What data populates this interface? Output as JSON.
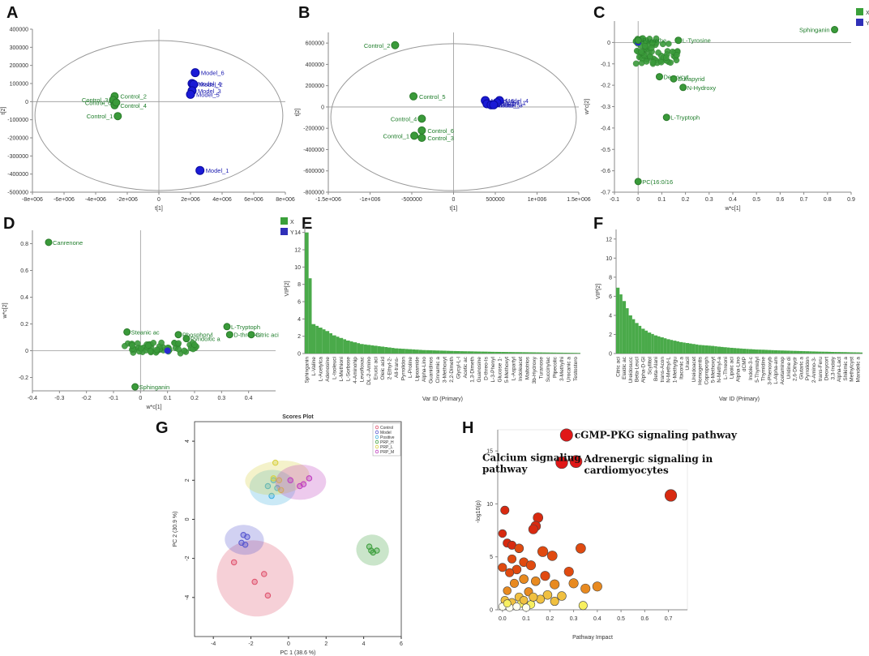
{
  "panel_labels": [
    "A",
    "B",
    "C",
    "D",
    "E",
    "F",
    "G",
    "H"
  ],
  "chart_data": [
    {
      "id": "A",
      "type": "scatter",
      "xlabel": "t[1]",
      "ylabel": "t[2]",
      "xlim": [
        -8000000,
        8000000
      ],
      "ylim": [
        -500000,
        400000
      ],
      "xticks": [
        "-8e+006",
        "-6e+006",
        "-4e+006",
        "-2e+006",
        "0",
        "2e+006",
        "4e+006",
        "6e+006",
        "8e+006"
      ],
      "xtick_vals": [
        -8000000,
        -6000000,
        -4000000,
        -2000000,
        0,
        2000000,
        4000000,
        6000000,
        8000000
      ],
      "yticks": [
        "-500000",
        "-400000",
        "-300000",
        "-200000",
        "-100000",
        "0",
        "100000",
        "200000",
        "300000",
        "400000"
      ],
      "ytick_vals": [
        -500000,
        -400000,
        -300000,
        -200000,
        -100000,
        0,
        100000,
        200000,
        300000,
        400000
      ],
      "points": [
        {
          "label": "Control_1",
          "x": -2600000,
          "y": -80000,
          "group": "control"
        },
        {
          "label": "Control_2",
          "x": -2800000,
          "y": 30000,
          "group": "control"
        },
        {
          "label": "Control_3",
          "x": -2900000,
          "y": 10000,
          "group": "control"
        },
        {
          "label": "Control_4",
          "x": -2800000,
          "y": -20000,
          "group": "control"
        },
        {
          "label": "Control_6",
          "x": -2700000,
          "y": -5000,
          "group": "control"
        },
        {
          "label": "Model_6",
          "x": 2300000,
          "y": 160000,
          "group": "model"
        },
        {
          "label": "Model_4",
          "x": 2100000,
          "y": 100000,
          "group": "model"
        },
        {
          "label": "Model_2",
          "x": 2200000,
          "y": 95000,
          "group": "model"
        },
        {
          "label": "Model_3",
          "x": 2100000,
          "y": 60000,
          "group": "model"
        },
        {
          "label": "Model_5",
          "x": 2000000,
          "y": 40000,
          "group": "model"
        },
        {
          "label": "Model_1",
          "x": 2600000,
          "y": -380000,
          "group": "model"
        }
      ]
    },
    {
      "id": "B",
      "type": "scatter",
      "xlabel": "t[1]",
      "ylabel": "t[2]",
      "xlim": [
        -1500000,
        1500000
      ],
      "ylim": [
        -800000,
        700000
      ],
      "xticks": [
        "-1.5e+006",
        "-1e+006",
        "-500000",
        "0",
        "500000",
        "1e+006",
        "1.5e+006"
      ],
      "xtick_vals": [
        -1500000,
        -1000000,
        -500000,
        0,
        500000,
        1000000,
        1500000
      ],
      "yticks": [
        "-800000",
        "-600000",
        "-400000",
        "-200000",
        "0",
        "200000",
        "400000",
        "600000"
      ],
      "ytick_vals": [
        -800000,
        -600000,
        -400000,
        -200000,
        0,
        200000,
        400000,
        600000
      ],
      "points": [
        {
          "label": "Control_2",
          "x": -700000,
          "y": 580000,
          "group": "control"
        },
        {
          "label": "Control_5",
          "x": -480000,
          "y": 100000,
          "group": "control"
        },
        {
          "label": "Control_4",
          "x": -380000,
          "y": -110000,
          "group": "control"
        },
        {
          "label": "Control_6",
          "x": -380000,
          "y": -220000,
          "group": "control"
        },
        {
          "label": "Control_1",
          "x": -470000,
          "y": -270000,
          "group": "control"
        },
        {
          "label": "Control_3",
          "x": -380000,
          "y": -290000,
          "group": "control"
        },
        {
          "label": "Model_6",
          "x": 380000,
          "y": 60000,
          "group": "model"
        },
        {
          "label": "Model_4",
          "x": 550000,
          "y": 60000,
          "group": "model"
        },
        {
          "label": "Model_1",
          "x": 520000,
          "y": 40000,
          "group": "model"
        },
        {
          "label": "Model_2",
          "x": 400000,
          "y": 30000,
          "group": "model"
        },
        {
          "label": "Model_5",
          "x": 450000,
          "y": 20000,
          "group": "model"
        },
        {
          "label": "Model_3",
          "x": 480000,
          "y": 20000,
          "group": "model"
        }
      ]
    },
    {
      "id": "C",
      "type": "scatter",
      "xlabel": "w*c[1]",
      "ylabel": "w*c[2]",
      "xlim": [
        -0.1,
        0.9
      ],
      "ylim": [
        -0.7,
        0.1
      ],
      "xticks": [
        "-0.1",
        "0",
        "0.1",
        "0.2",
        "0.3",
        "0.4",
        "0.5",
        "0.6",
        "0.7",
        "0.8",
        "0.9"
      ],
      "xtick_vals": [
        -0.1,
        0,
        0.1,
        0.2,
        0.3,
        0.4,
        0.5,
        0.6,
        0.7,
        0.8,
        0.9
      ],
      "yticks": [
        "-0.7",
        "-0.6",
        "-0.5",
        "-0.4",
        "-0.3",
        "-0.2",
        "-0.1",
        "0"
      ],
      "ytick_vals": [
        -0.7,
        -0.6,
        -0.5,
        -0.4,
        -0.3,
        -0.2,
        -0.1,
        0
      ],
      "legend": [
        "X",
        "Y"
      ],
      "labeled_points": [
        {
          "label": "Sphinganin",
          "x": 0.83,
          "y": 0.06
        },
        {
          "label": "Pantothe",
          "x": 0.0,
          "y": 0.01
        },
        {
          "label": "L-Tyrosine",
          "x": 0.17,
          "y": 0.01
        },
        {
          "label": "Deoxycyt",
          "x": 0.09,
          "y": -0.16
        },
        {
          "label": "Sulfapyrid",
          "x": 0.15,
          "y": -0.17
        },
        {
          "label": "N-Hydroxy",
          "x": 0.19,
          "y": -0.21
        },
        {
          "label": "L-Tryptoph",
          "x": 0.12,
          "y": -0.35
        },
        {
          "label": "PC(16:0/16",
          "x": 0.0,
          "y": -0.65
        }
      ]
    },
    {
      "id": "D",
      "type": "scatter",
      "xlabel": "w*c[1]",
      "ylabel": "w*c[2]",
      "xlim": [
        -0.4,
        0.5
      ],
      "ylim": [
        -0.3,
        0.9
      ],
      "xticks": [
        "-0.4",
        "-0.3",
        "-0.2",
        "-0.1",
        "0",
        "0.1",
        "0.2",
        "0.3",
        "0.4"
      ],
      "xtick_vals": [
        -0.4,
        -0.3,
        -0.2,
        -0.1,
        0,
        0.1,
        0.2,
        0.3,
        0.4
      ],
      "yticks": [
        "-0.2",
        "0",
        "0.2",
        "0.4",
        "0.6",
        "0.8"
      ],
      "ytick_vals": [
        -0.2,
        0,
        0.2,
        0.4,
        0.6,
        0.8
      ],
      "legend": [
        "X",
        "Y"
      ],
      "labeled_points": [
        {
          "label": "Canrenone",
          "x": -0.34,
          "y": 0.81
        },
        {
          "label": "Steanic ac",
          "x": -0.05,
          "y": 0.14
        },
        {
          "label": "L-Tryptoph",
          "x": 0.32,
          "y": 0.18
        },
        {
          "label": "D-threo-Is",
          "x": 0.33,
          "y": 0.12
        },
        {
          "label": "Citric aci",
          "x": 0.41,
          "y": 0.12
        },
        {
          "label": "Phosphoryl",
          "x": 0.14,
          "y": 0.12
        },
        {
          "label": "Pyridoxic a",
          "x": 0.17,
          "y": 0.09
        },
        {
          "label": "Sphinganin",
          "x": -0.02,
          "y": -0.27
        }
      ]
    },
    {
      "id": "E",
      "type": "bar",
      "xlabel": "Var ID (Primary)",
      "ylabel": "VIP[2]",
      "ylim": [
        0,
        15
      ],
      "yticks": [
        "0",
        "2",
        "4",
        "6",
        "8",
        "10",
        "12",
        "14"
      ],
      "ytick_vals": [
        0,
        2,
        4,
        6,
        8,
        10,
        12,
        14
      ],
      "categories": [
        "Sphinganin",
        "L-Valine",
        "L-Acetylca",
        "Adenosine",
        "L-Isoleuci",
        "L-Methioni",
        "L-Sorbose",
        "4-Aminohip",
        "Levofloxac",
        "DL-2-Amino",
        "Erucic aci",
        "Oleic acid",
        "2-Ethyl-2-",
        "All-trans-",
        "Pyrrolidon",
        "L-Proline",
        "Lipoamide",
        "Alpha-Lino",
        "Guanidinos",
        "Cinnamic a",
        "3-Methoxyt",
        "2,2-Dimeth",
        "Glycyl-L-l",
        "Acetic ac",
        "1,3-Dimeth",
        "Guanosine",
        "D-threo-Is",
        "L-3-Phenyl",
        "Glucose 1-",
        "5-Methoxyt",
        "L-Aspartyl",
        "Indoleacet",
        "Maltotrios",
        "3b-Hydroxy",
        "Turanose",
        "Succinylac",
        "Pipecolic",
        "3-Methylhi",
        "Urocanic a",
        "Testostero"
      ],
      "values": [
        14.0,
        3.4,
        3.0,
        2.6,
        2.1,
        1.8,
        1.5,
        1.3,
        1.1,
        1.0,
        0.9,
        0.8,
        0.7,
        0.6,
        0.55,
        0.5,
        0.45,
        0.4,
        0.38,
        0.35,
        0.33,
        0.3,
        0.28,
        0.26,
        0.25,
        0.23,
        0.22,
        0.2,
        0.19,
        0.18,
        0.17,
        0.16,
        0.15,
        0.14,
        0.13,
        0.12,
        0.11,
        0.1,
        0.09,
        0.08
      ]
    },
    {
      "id": "F",
      "type": "bar",
      "xlabel": "Var ID (Primary)",
      "ylabel": "VIP[2]",
      "ylim": [
        0,
        13
      ],
      "yticks": [
        "0",
        "2",
        "4",
        "6",
        "8",
        "10",
        "12"
      ],
      "ytick_vals": [
        0,
        2,
        4,
        6,
        8,
        10,
        12
      ],
      "categories": [
        "Citric aci",
        "Elaidic ac",
        "Ureidosucc",
        "Beta-Leucl",
        "Alpha-D-Gl",
        "Scyllitol",
        "Beta-Alani",
        "trans-Acon",
        "N-Methyl-L",
        "1-Methylgu",
        "Itaconic a",
        "Uracil",
        "Ureidoacet",
        "Homogentis",
        "Coproporph",
        "5-Methoxyt",
        "N-Methyl-a",
        "L-Threoni",
        "Lipoic aci",
        "Alpha-Lino",
        "dCMP",
        "Indole-3-c",
        "5-Thymidyl",
        "Thymidine",
        "3-Phenoxyb",
        "L-Alpha-am",
        "Acetaminop",
        "Uridine di",
        "2,6-Dihydr",
        "Glutaric a",
        "Pyrrolidon",
        "2-Amino-3-",
        "trans-Feru",
        "Deoxycort",
        "3,3-Indoly",
        "Alpha-Lact",
        "Shikimic a",
        "Methylcyst",
        "Mandelic a"
      ],
      "values": [
        6.9,
        5.5,
        4.0,
        3.2,
        2.6,
        2.2,
        1.9,
        1.7,
        1.5,
        1.35,
        1.2,
        1.1,
        1.0,
        0.9,
        0.85,
        0.8,
        0.72,
        0.66,
        0.6,
        0.55,
        0.5,
        0.46,
        0.42,
        0.4,
        0.37,
        0.34,
        0.32,
        0.3,
        0.28,
        0.26,
        0.24,
        0.22,
        0.2,
        0.19,
        0.17,
        0.16,
        0.15,
        0.13,
        0.12
      ]
    },
    {
      "id": "G",
      "type": "scatter",
      "title": "Scores Plot",
      "xlabel": "PC 1 (38.6 %)",
      "ylabel": "PC 2 (30.9 %)",
      "xlim": [
        -5,
        6
      ],
      "ylim": [
        -6,
        5
      ],
      "xticks": [
        "-4",
        "-2",
        "0",
        "2",
        "4",
        "6"
      ],
      "xtick_vals": [
        -4,
        -2,
        0,
        2,
        4,
        6
      ],
      "yticks": [
        "-4",
        "-2",
        "0",
        "2",
        "4"
      ],
      "ytick_vals": [
        -4,
        -2,
        0,
        2,
        4
      ],
      "legend": [
        "Control",
        "Model",
        "Positive",
        "PRP_H",
        "PRP_L",
        "PRP_M"
      ],
      "colors": [
        "#e05570",
        "#5a5ad0",
        "#40b0e0",
        "#40a040",
        "#d8d040",
        "#c040c0"
      ],
      "series": [
        {
          "name": "Control",
          "points": [
            [
              -2.9,
              -2.2
            ],
            [
              -1.8,
              -3.2
            ],
            [
              -1.3,
              -2.8
            ],
            [
              -1.1,
              -3.9
            ]
          ]
        },
        {
          "name": "Model",
          "points": [
            [
              -2.4,
              -0.8
            ],
            [
              -2.2,
              -0.9
            ],
            [
              -2.3,
              -1.3
            ],
            [
              -2.5,
              -1.2
            ]
          ]
        },
        {
          "name": "Positive",
          "points": [
            [
              -1.1,
              1.7
            ],
            [
              -0.9,
              1.2
            ],
            [
              -0.6,
              1.6
            ],
            [
              -0.8,
              2.0
            ]
          ]
        },
        {
          "name": "PRP_H",
          "points": [
            [
              4.3,
              -1.4
            ],
            [
              4.5,
              -1.7
            ],
            [
              4.7,
              -1.6
            ],
            [
              4.4,
              -1.6
            ]
          ]
        },
        {
          "name": "PRP_L",
          "points": [
            [
              -0.7,
              2.9
            ],
            [
              -0.5,
              2.0
            ],
            [
              -0.4,
              1.5
            ],
            [
              -0.8,
              2.1
            ]
          ]
        },
        {
          "name": "PRP_M",
          "points": [
            [
              0.1,
              2.0
            ],
            [
              0.8,
              1.8
            ],
            [
              1.1,
              2.1
            ],
            [
              0.6,
              1.7
            ]
          ]
        }
      ]
    },
    {
      "id": "H",
      "type": "scatter",
      "xlabel": "Pathway Impact",
      "ylabel": "-log10(p)",
      "xlim": [
        -0.02,
        0.78
      ],
      "ylim": [
        0,
        17
      ],
      "xticks": [
        "0.0",
        "0.1",
        "0.2",
        "0.3",
        "0.4",
        "0.5",
        "0.6",
        "0.7"
      ],
      "xtick_vals": [
        0,
        0.1,
        0.2,
        0.3,
        0.4,
        0.5,
        0.6,
        0.7
      ],
      "yticks": [
        "0",
        "5",
        "10",
        "15"
      ],
      "ytick_vals": [
        0,
        5,
        10,
        15
      ],
      "annotations": [
        {
          "text": "cGMP-PKG signaling pathway",
          "x": 0.27,
          "y": 16.5
        },
        {
          "text": "Calcium signaling",
          "x": 0.25,
          "y": 13.9
        },
        {
          "text": "pathway",
          "x": 0.25,
          "y": 13.9
        },
        {
          "text": "Adrenergic signaling in",
          "x": 0.31,
          "y": 14.0
        },
        {
          "text": "cardiomyocytes",
          "x": 0.31,
          "y": 14.0
        }
      ],
      "points": [
        [
          0.27,
          16.5,
          0.85
        ],
        [
          0.25,
          13.9,
          0.8
        ],
        [
          0.31,
          14.0,
          0.82
        ],
        [
          0.71,
          10.8,
          0.78
        ],
        [
          0.01,
          9.4,
          0.4
        ],
        [
          0.0,
          7.2,
          0.35
        ],
        [
          0.15,
          8.7,
          0.55
        ],
        [
          0.14,
          7.9,
          0.55
        ],
        [
          0.13,
          7.6,
          0.5
        ],
        [
          0.02,
          6.3,
          0.4
        ],
        [
          0.04,
          6.1,
          0.4
        ],
        [
          0.07,
          5.8,
          0.45
        ],
        [
          0.17,
          5.5,
          0.6
        ],
        [
          0.21,
          5.1,
          0.55
        ],
        [
          0.33,
          5.8,
          0.55
        ],
        [
          0.04,
          4.8,
          0.4
        ],
        [
          0.09,
          4.5,
          0.45
        ],
        [
          0.12,
          4.2,
          0.5
        ],
        [
          0.0,
          4.0,
          0.4
        ],
        [
          0.06,
          3.8,
          0.45
        ],
        [
          0.03,
          3.5,
          0.4
        ],
        [
          0.18,
          3.2,
          0.5
        ],
        [
          0.09,
          2.9,
          0.45
        ],
        [
          0.28,
          3.6,
          0.5
        ],
        [
          0.3,
          2.5,
          0.5
        ],
        [
          0.22,
          2.4,
          0.5
        ],
        [
          0.35,
          2.0,
          0.5
        ],
        [
          0.4,
          2.2,
          0.5
        ],
        [
          0.14,
          2.7,
          0.45
        ],
        [
          0.05,
          2.5,
          0.4
        ],
        [
          0.02,
          1.8,
          0.35
        ],
        [
          0.11,
          1.7,
          0.4
        ],
        [
          0.19,
          1.4,
          0.45
        ],
        [
          0.25,
          1.3,
          0.45
        ],
        [
          0.07,
          1.2,
          0.4
        ],
        [
          0.16,
          1.0,
          0.4
        ],
        [
          0.01,
          0.9,
          0.35
        ],
        [
          0.04,
          0.7,
          0.35
        ],
        [
          0.08,
          0.6,
          0.35
        ],
        [
          0.12,
          0.5,
          0.35
        ],
        [
          0.0,
          0.3,
          0.3
        ],
        [
          0.03,
          0.2,
          0.3
        ],
        [
          0.06,
          0.3,
          0.3
        ],
        [
          0.1,
          0.2,
          0.3
        ],
        [
          0.34,
          0.4,
          0.4
        ],
        [
          0.02,
          0.6,
          0.3
        ],
        [
          0.09,
          0.9,
          0.35
        ],
        [
          0.13,
          1.2,
          0.4
        ],
        [
          0.22,
          0.8,
          0.4
        ]
      ]
    }
  ]
}
